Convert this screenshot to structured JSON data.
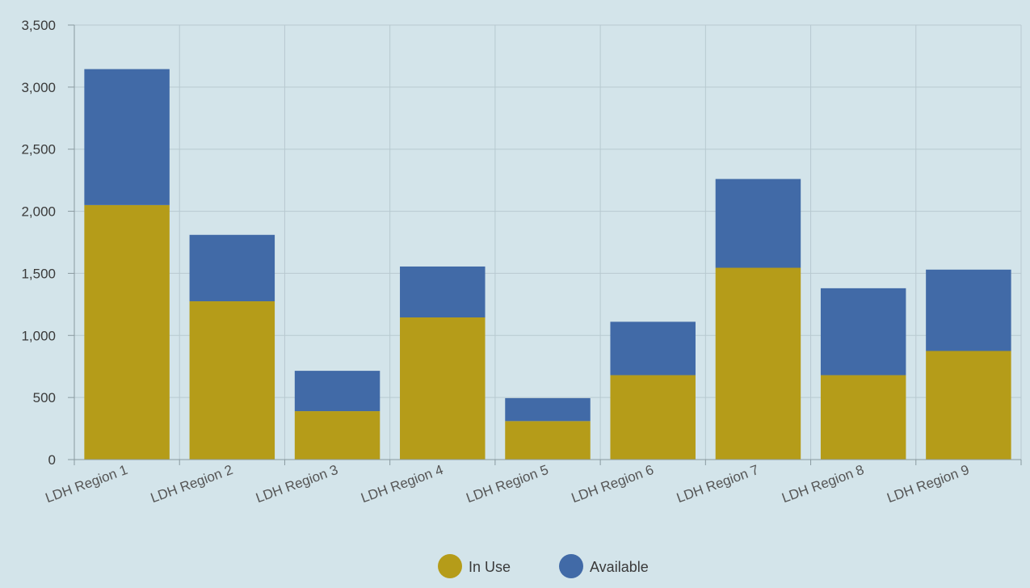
{
  "chart_data": {
    "type": "bar",
    "stacked": true,
    "categories": [
      "LDH Region 1",
      "LDH Region 2",
      "LDH Region 3",
      "LDH Region 4",
      "LDH Region 5",
      "LDH Region 6",
      "LDH Region 7",
      "LDH Region 8",
      "LDH Region 9"
    ],
    "series": [
      {
        "name": "In Use",
        "color": "#b59c19",
        "values": [
          2050,
          1275,
          390,
          1145,
          310,
          680,
          1545,
          680,
          875
        ]
      },
      {
        "name": "Available",
        "color": "#416aa7",
        "values": [
          1095,
          535,
          325,
          410,
          185,
          430,
          715,
          700,
          655
        ]
      }
    ],
    "title": "",
    "xlabel": "",
    "ylabel": "",
    "ylim": [
      0,
      3500
    ],
    "yticks": [
      0,
      500,
      1000,
      1500,
      2000,
      2500,
      3000,
      3500
    ],
    "ytick_labels": [
      "0",
      "500",
      "1,000",
      "1,500",
      "2,000",
      "2,500",
      "3,000",
      "3,500"
    ],
    "grid": true,
    "legend_position": "bottom-center",
    "background_color": "#d3e4ea"
  }
}
